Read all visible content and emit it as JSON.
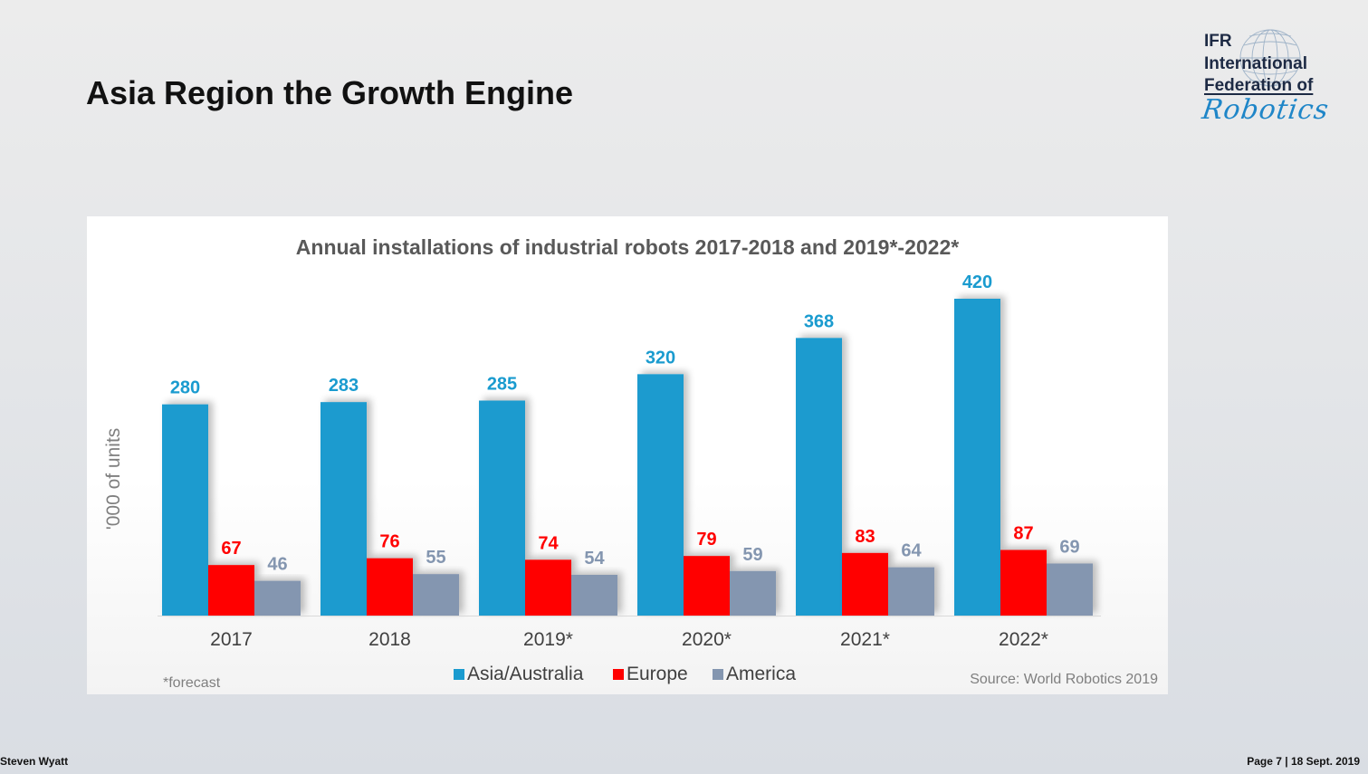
{
  "slide": {
    "title": "Asia Region the Growth Engine",
    "footer_left": "Steven Wyatt",
    "footer_right": "Page 7 | 18 Sept. 2019"
  },
  "logo": {
    "line1": "IFR",
    "line2": "International",
    "line3": "Federation of",
    "script": "Robotics",
    "icon": "globe-icon"
  },
  "chart_data": {
    "type": "bar",
    "title": "Annual installations of industrial robots 2017-2018 and 2019*-2022*",
    "ylabel": "'000 of units",
    "xlabel": "",
    "categories": [
      "2017",
      "2018",
      "2019*",
      "2020*",
      "2021*",
      "2022*"
    ],
    "series": [
      {
        "name": "Asia/Australia",
        "color": "#1a9bcf",
        "values": [
          280,
          283,
          285,
          320,
          368,
          420
        ]
      },
      {
        "name": "Europe",
        "color": "#ff0000",
        "values": [
          67,
          76,
          74,
          79,
          83,
          87
        ]
      },
      {
        "name": "America",
        "color": "#8496b0",
        "values": [
          46,
          55,
          54,
          59,
          64,
          69
        ]
      }
    ],
    "ylim": [
      0,
      420
    ],
    "grid": false,
    "legend_position": "bottom",
    "footnote": "*forecast",
    "source": "Source: World Robotics 2019"
  }
}
